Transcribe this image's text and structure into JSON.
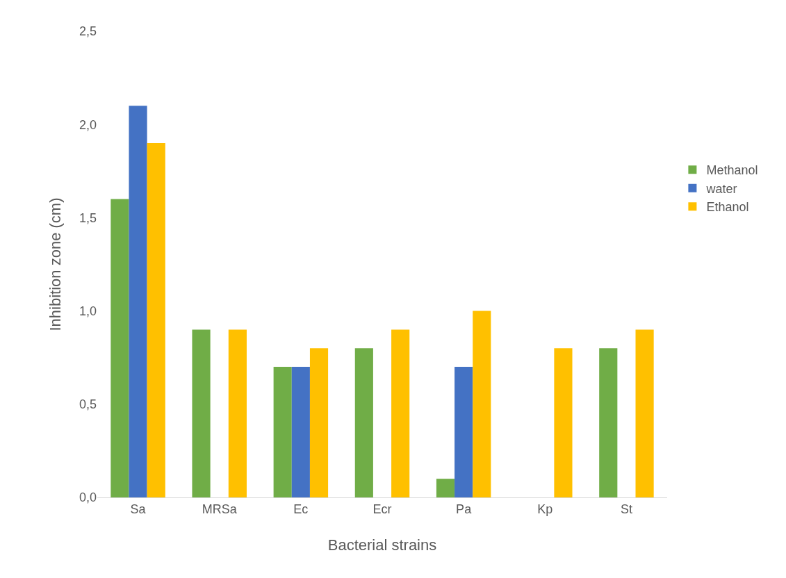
{
  "chart_data": {
    "type": "bar",
    "xlabel": "Bacterial strains",
    "ylabel": "Inhibition zone (cm)",
    "categories": [
      "Sa",
      "MRSa",
      "Ec",
      "Ecr",
      "Pa",
      "Kp",
      "St"
    ],
    "series": [
      {
        "name": "Methanol",
        "color": "#70ad47",
        "values": [
          1.6,
          0.9,
          0.7,
          0.8,
          0.1,
          0,
          0.8
        ]
      },
      {
        "name": "water",
        "color": "#4472c4",
        "values": [
          2.1,
          0,
          0.7,
          0,
          0.7,
          0,
          0
        ]
      },
      {
        "name": "Ethanol",
        "color": "#ffc000",
        "values": [
          1.9,
          0.9,
          0.8,
          0.9,
          1.0,
          0.8,
          0.9
        ]
      }
    ],
    "ylim": [
      0,
      2.5
    ],
    "yticks": [
      {
        "value": 0,
        "label": "0,0"
      },
      {
        "value": 0.5,
        "label": "0,5"
      },
      {
        "value": 1,
        "label": "1,0"
      },
      {
        "value": 1.5,
        "label": "1,5"
      },
      {
        "value": 2,
        "label": "2,0"
      },
      {
        "value": 2.5,
        "label": "2,5"
      }
    ],
    "grid": false,
    "legend": "right"
  }
}
